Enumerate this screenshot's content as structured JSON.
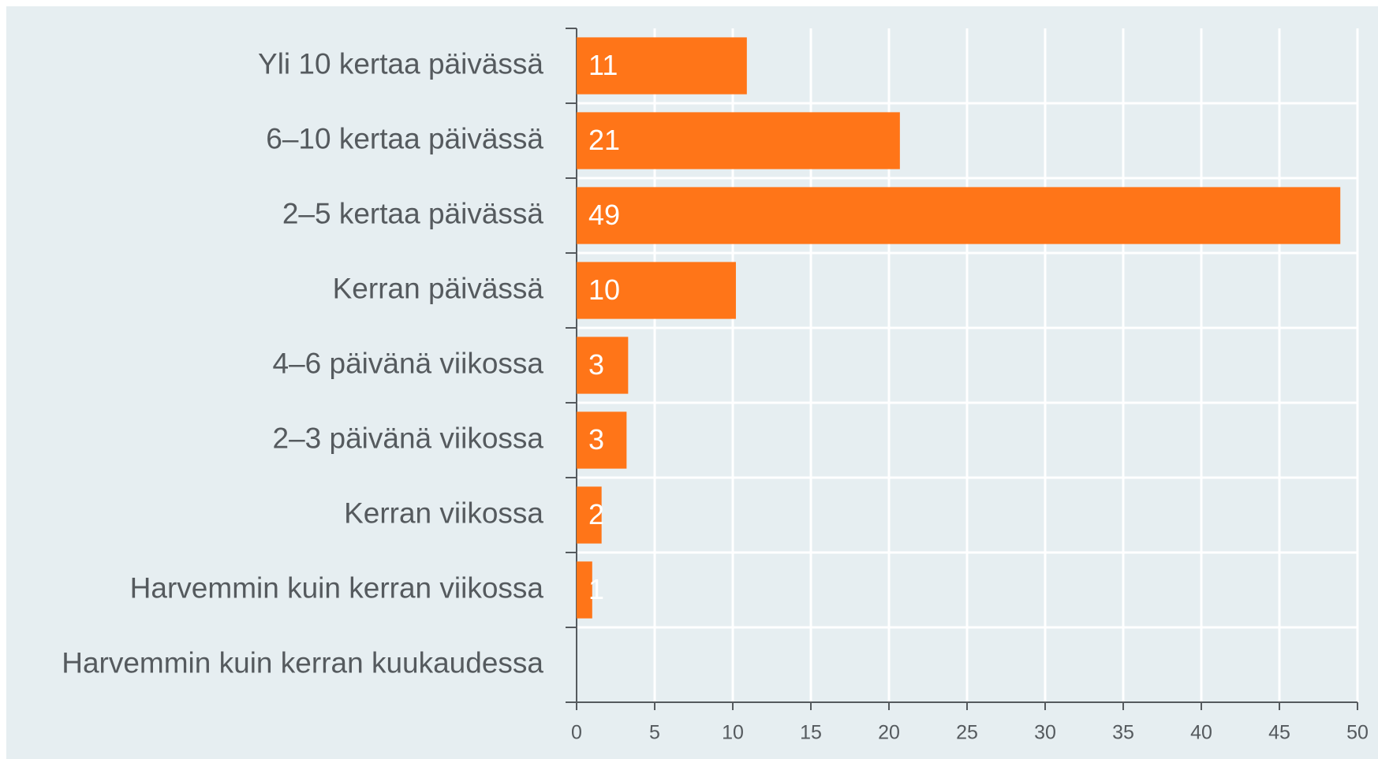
{
  "chart_data": {
    "type": "bar",
    "orientation": "horizontal",
    "categories": [
      "Yli 10 kertaa päivässä",
      "6–10 kertaa päivässä",
      "2–5 kertaa päivässä",
      "Kerran päivässä",
      "4–6 päivänä viikossa",
      "2–3 päivänä viikossa",
      "Kerran viikossa",
      "Harvemmin kuin kerran viikossa",
      "Harvemmin kuin kerran kuukaudessa"
    ],
    "values": [
      10.9,
      20.7,
      48.9,
      10.2,
      3.3,
      3.2,
      1.6,
      1.0,
      0
    ],
    "value_labels": [
      "11",
      "21",
      "49",
      "10",
      "3",
      "3",
      "2",
      "1",
      null
    ],
    "color": "#ff7518",
    "xlim": [
      0,
      50
    ],
    "xticks": [
      0,
      5,
      10,
      15,
      20,
      25,
      30,
      35,
      40,
      45,
      50
    ],
    "grid": true
  }
}
